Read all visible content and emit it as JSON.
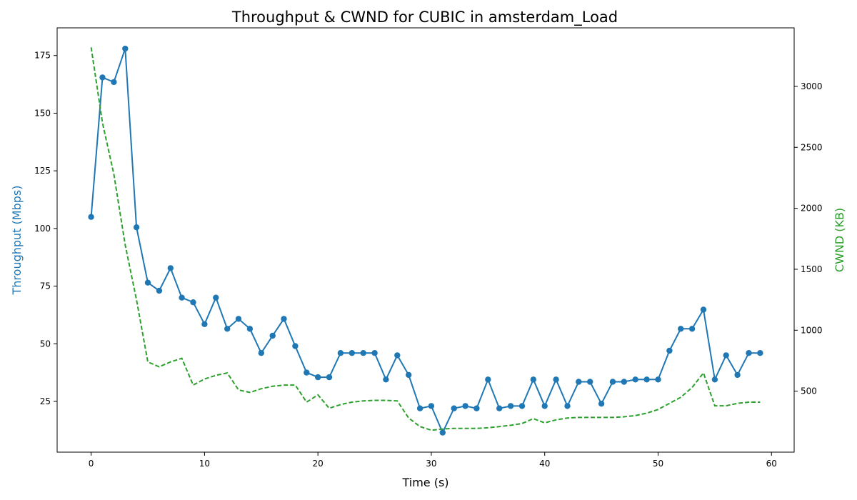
{
  "chart_data": {
    "type": "line",
    "title": "Throughput & CWND for CUBIC in amsterdam_Load",
    "xlabel": "Time (s)",
    "ylabel_left": "Throughput (Mbps)",
    "ylabel_right": "CWND (KB)",
    "xlim": [
      -3,
      62
    ],
    "ylim_left": [
      3,
      187
    ],
    "ylim_right": [
      0,
      3480
    ],
    "xticks": [
      0,
      10,
      20,
      30,
      40,
      50,
      60
    ],
    "yticks_left": [
      25,
      50,
      75,
      100,
      125,
      150,
      175
    ],
    "yticks_right": [
      500,
      1000,
      1500,
      2000,
      2500,
      3000
    ],
    "grid": false,
    "colors": {
      "throughput": "#1f77b4",
      "cwnd": "#2ca02c"
    },
    "x": [
      0,
      1,
      2,
      3,
      4,
      5,
      6,
      7,
      8,
      9,
      10,
      11,
      12,
      13,
      14,
      15,
      16,
      17,
      18,
      19,
      20,
      21,
      22,
      23,
      24,
      25,
      26,
      27,
      28,
      29,
      30,
      31,
      32,
      33,
      34,
      35,
      36,
      37,
      38,
      39,
      40,
      41,
      42,
      43,
      44,
      45,
      46,
      47,
      48,
      49,
      50,
      51,
      52,
      53,
      54,
      55,
      56,
      57,
      58,
      59
    ],
    "series": [
      {
        "axis": "left",
        "style": "line-marker",
        "values": [
          105,
          165.5,
          163.5,
          178,
          100.5,
          76.5,
          73,
          82.8,
          70,
          68,
          58.5,
          70,
          56.5,
          60.8,
          56.5,
          46,
          53.5,
          60.8,
          49,
          37.5,
          35.5,
          35.5,
          46,
          46,
          46,
          46,
          34.5,
          45,
          36.5,
          22,
          23,
          11.5,
          22,
          23,
          22,
          34.5,
          22,
          23,
          23,
          34.5,
          23,
          34.5,
          23,
          33.5,
          33.5,
          24,
          33.5,
          33.5,
          34.5,
          34.5,
          34.5,
          47,
          56.5,
          56.5,
          64.8,
          34.5,
          45,
          36.5,
          46,
          46
        ]
      },
      {
        "axis": "right",
        "style": "dashed",
        "values": [
          3320,
          2700,
          2280,
          1700,
          1250,
          740,
          700,
          740,
          770,
          550,
          600,
          630,
          650,
          510,
          490,
          520,
          540,
          550,
          550,
          410,
          470,
          360,
          390,
          410,
          420,
          425,
          425,
          420,
          280,
          210,
          180,
          190,
          195,
          195,
          195,
          200,
          210,
          220,
          235,
          275,
          240,
          265,
          280,
          285,
          285,
          285,
          285,
          290,
          300,
          320,
          350,
          400,
          450,
          530,
          650,
          380,
          380,
          400,
          410,
          410
        ]
      }
    ]
  }
}
